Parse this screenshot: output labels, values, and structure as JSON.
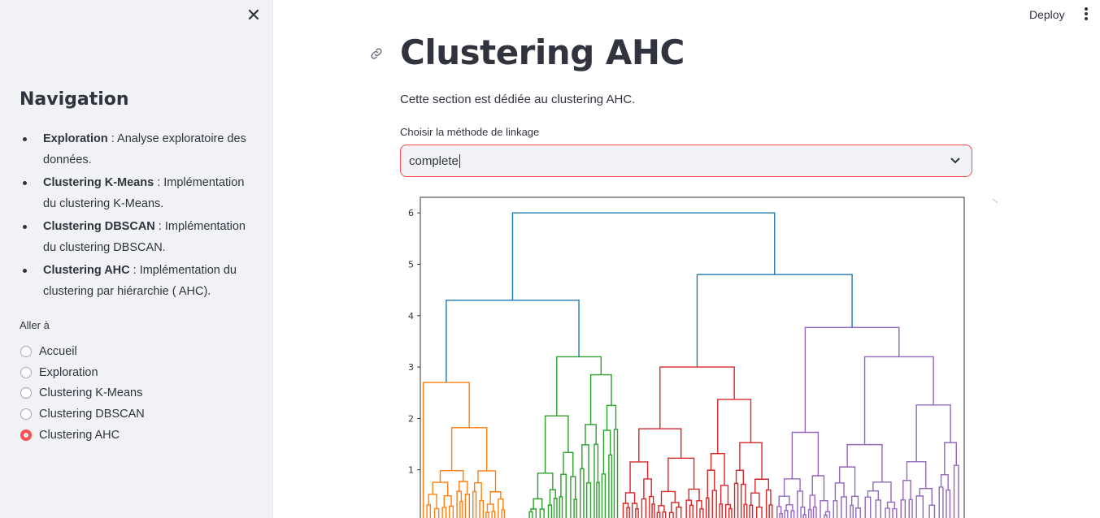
{
  "sidebar": {
    "close_icon": "close-icon",
    "title": "Navigation",
    "items": [
      {
        "bold": "Exploration",
        "text": " : Analyse exploratoire des données."
      },
      {
        "bold": "Clustering K-Means",
        "text": " : Implémentation du clustering K-Means."
      },
      {
        "bold": "Clustering DBSCAN",
        "text": " : Implémentation du clustering DBSCAN."
      },
      {
        "bold": "Clustering AHC",
        "text": " : Implémentation du clustering par hiérarchie ( AHC)."
      }
    ],
    "radio_label": "Aller à",
    "radio_options": [
      "Accueil",
      "Exploration",
      "Clustering K-Means",
      "Clustering DBSCAN",
      "Clustering AHC"
    ],
    "selected_option": "Clustering AHC"
  },
  "header": {
    "deploy_label": "Deploy",
    "menu_icon": "vertical-dots-icon"
  },
  "main": {
    "title": "Clustering AHC",
    "description": "Cette section est dédiée au clustering AHC.",
    "select_label": "Choisir la méthode de linkage",
    "select_value": "complete",
    "accent_color": "#ff4b4b"
  },
  "chart_data": {
    "type": "dendrogram",
    "title": "",
    "xlabel": "",
    "ylabel": "",
    "ylim": [
      0,
      6.3
    ],
    "yticks": [
      "1",
      "2",
      "3",
      "4",
      "5",
      "6"
    ],
    "clusters": [
      {
        "color": "#ff7f0e",
        "merge_height": 2.7
      },
      {
        "color": "#2ca02c",
        "merge_height": 3.2
      },
      {
        "color": "#d62728",
        "merge_height": 3.0
      },
      {
        "color": "#9467bd",
        "merge_height": 3.77
      }
    ],
    "link_color": "#1f77b4",
    "top_merges": [
      {
        "height": 4.3,
        "joins": "orange + green"
      },
      {
        "height": 4.8,
        "joins": "red + purple"
      },
      {
        "height": 6.0,
        "joins": "all"
      }
    ]
  }
}
